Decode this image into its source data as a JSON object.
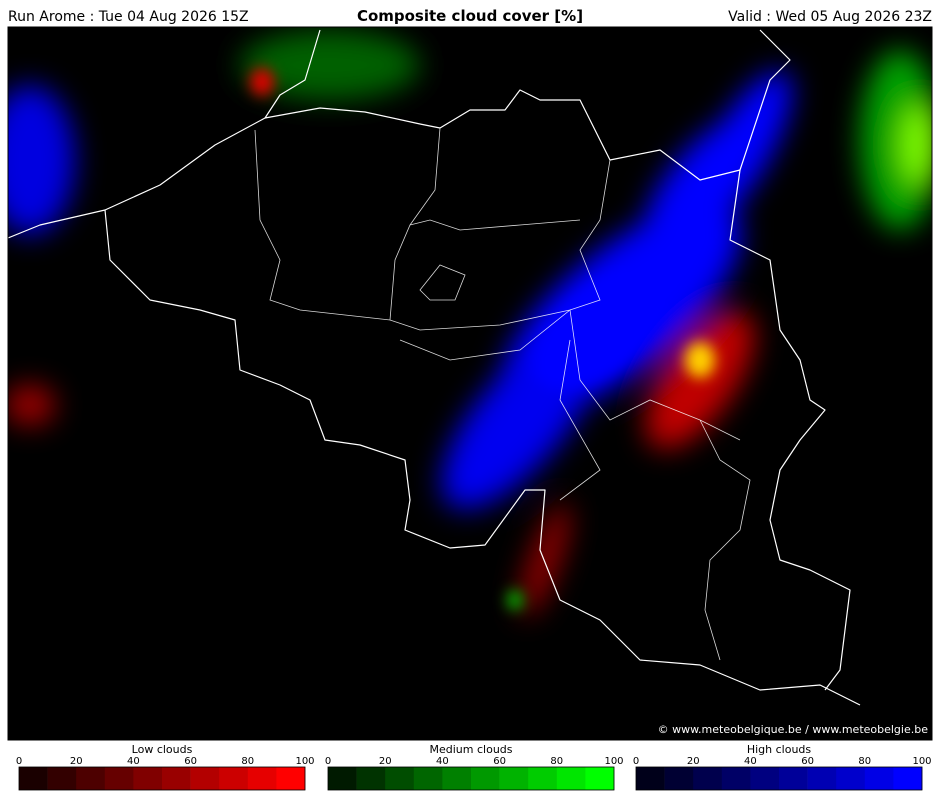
{
  "header": {
    "left": "Run Arome : Tue 04 Aug 2026 15Z",
    "title": "Composite cloud cover [%]",
    "right": "Valid : Wed 05 Aug 2026 23Z"
  },
  "credit": "© www.meteobelgique.be / www.meteobelgie.be",
  "legends": [
    {
      "title": "Low clouds",
      "ticks": [
        0,
        20,
        40,
        60,
        80,
        100
      ],
      "colors": [
        "#1a0000",
        "#330000",
        "#4d0000",
        "#660000",
        "#800000",
        "#990000",
        "#b30000",
        "#cc0000",
        "#e60000",
        "#ff0000"
      ]
    },
    {
      "title": "Medium clouds",
      "ticks": [
        0,
        20,
        40,
        60,
        80,
        100
      ],
      "colors": [
        "#001a00",
        "#003300",
        "#004d00",
        "#006600",
        "#008000",
        "#009900",
        "#00b300",
        "#00cc00",
        "#00e600",
        "#00ff00"
      ]
    },
    {
      "title": "High clouds",
      "ticks": [
        0,
        20,
        40,
        60,
        80,
        100
      ],
      "colors": [
        "#00001a",
        "#000033",
        "#00004d",
        "#000066",
        "#000080",
        "#000099",
        "#0000b3",
        "#0000cc",
        "#0000e6",
        "#0000ff"
      ]
    }
  ]
}
